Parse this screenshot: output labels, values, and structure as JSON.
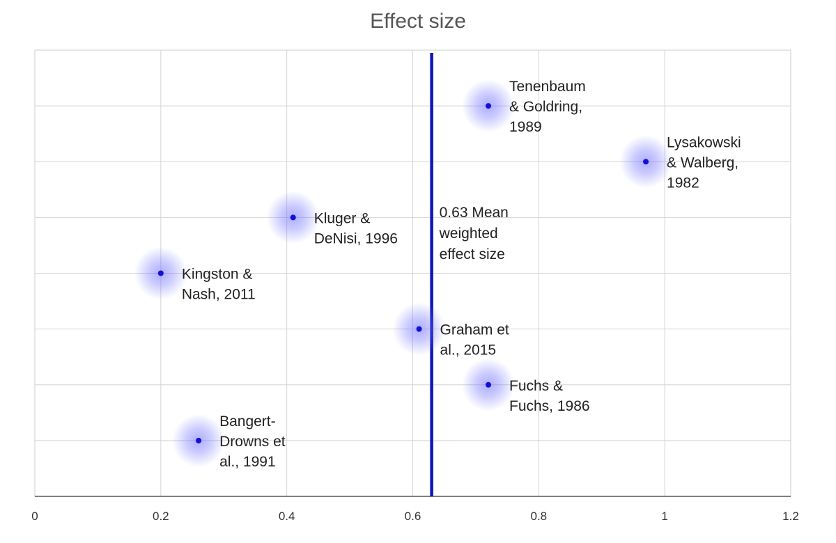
{
  "chart_data": {
    "type": "scatter",
    "title": "Effect size",
    "xlabel": "",
    "ylabel": "",
    "xlim": [
      0,
      1.2
    ],
    "ylim": [
      0,
      8
    ],
    "x_ticks": [
      "0",
      "0.2",
      "0.4",
      "0.6",
      "0.8",
      "1",
      "1.2"
    ],
    "grid": true,
    "point_color": "#1010e0",
    "halo_color": "#6b6bff",
    "points": [
      {
        "x": 0.72,
        "y": 7,
        "label_lines": [
          "Tenenbaum",
          "& Goldring,",
          "1989"
        ]
      },
      {
        "x": 0.97,
        "y": 6,
        "label_lines": [
          "Lysakowski",
          "& Walberg,",
          "1982"
        ]
      },
      {
        "x": 0.41,
        "y": 5,
        "label_lines": [
          "Kluger &",
          "DeNisi, 1996"
        ]
      },
      {
        "x": 0.2,
        "y": 4,
        "label_lines": [
          "Kingston &",
          "Nash, 2011"
        ]
      },
      {
        "x": 0.61,
        "y": 3,
        "label_lines": [
          "Graham et",
          "al., 2015"
        ]
      },
      {
        "x": 0.72,
        "y": 2,
        "label_lines": [
          "Fuchs &",
          "Fuchs, 1986"
        ]
      },
      {
        "x": 0.26,
        "y": 1,
        "label_lines": [
          "Bangert-",
          "Drowns et",
          "al., 1991"
        ]
      }
    ],
    "mean_line": {
      "x": 0.63,
      "color": "#0a12d6",
      "label_lines": [
        "0.63 Mean",
        "weighted",
        "effect size"
      ]
    }
  }
}
